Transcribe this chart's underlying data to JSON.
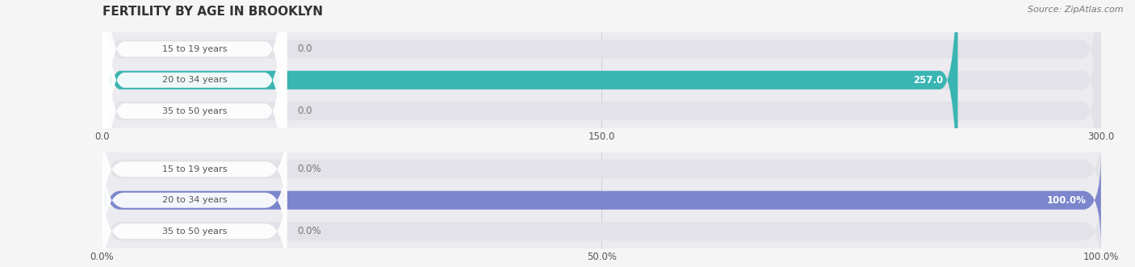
{
  "title": "FERTILITY BY AGE IN BROOKLYN",
  "source": "Source: ZipAtlas.com",
  "chart1": {
    "categories": [
      "15 to 19 years",
      "20 to 34 years",
      "35 to 50 years"
    ],
    "values": [
      0.0,
      257.0,
      0.0
    ],
    "xlim": [
      0,
      300.0
    ],
    "xticks": [
      0.0,
      150.0,
      300.0
    ],
    "xticklabels": [
      "0.0",
      "150.0",
      "300.0"
    ],
    "bar_color_main": "#39b5b2",
    "bar_bg_color": "#e2e2e8"
  },
  "chart2": {
    "categories": [
      "15 to 19 years",
      "20 to 34 years",
      "35 to 50 years"
    ],
    "values": [
      0.0,
      100.0,
      0.0
    ],
    "xlim": [
      0,
      100.0
    ],
    "xticks": [
      0.0,
      50.0,
      100.0
    ],
    "xticklabels": [
      "0.0%",
      "50.0%",
      "100.0%"
    ],
    "bar_color_main": "#7b86cc",
    "bar_bg_color": "#e2e2e8"
  },
  "fig_bg": "#f5f5f5",
  "axes_bg": "#ebebf0",
  "label_color": "#555555",
  "value_color_inside": "#ffffff",
  "value_color_outside": "#777777",
  "title_color": "#333333",
  "source_color": "#777777",
  "pill_bg": "#ffffff",
  "gridline_color": "#d0d0d8"
}
